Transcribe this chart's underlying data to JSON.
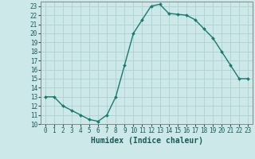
{
  "x": [
    0,
    1,
    2,
    3,
    4,
    5,
    6,
    7,
    8,
    9,
    10,
    11,
    12,
    13,
    14,
    15,
    16,
    17,
    18,
    19,
    20,
    21,
    22,
    23
  ],
  "y": [
    13,
    13,
    12,
    11.5,
    11,
    10.5,
    10.3,
    11,
    13,
    16.5,
    20,
    21.5,
    23,
    23.2,
    22.2,
    22.1,
    22,
    21.5,
    20.5,
    19.5,
    18,
    16.5,
    15,
    15
  ],
  "line_color": "#1a7a6e",
  "marker": "D",
  "marker_size": 2.0,
  "bg_color": "#cce8e8",
  "grid_color": "#b0d0d0",
  "xlabel": "Humidex (Indice chaleur)",
  "ylim": [
    10,
    23.5
  ],
  "xlim": [
    -0.5,
    23.5
  ],
  "yticks": [
    10,
    11,
    12,
    13,
    14,
    15,
    16,
    17,
    18,
    19,
    20,
    21,
    22,
    23
  ],
  "xticks": [
    0,
    1,
    2,
    3,
    4,
    5,
    6,
    7,
    8,
    9,
    10,
    11,
    12,
    13,
    14,
    15,
    16,
    17,
    18,
    19,
    20,
    21,
    22,
    23
  ],
  "tick_fontsize": 5.5,
  "xlabel_fontsize": 7.0,
  "spine_color": "#888888",
  "line_width": 1.0
}
